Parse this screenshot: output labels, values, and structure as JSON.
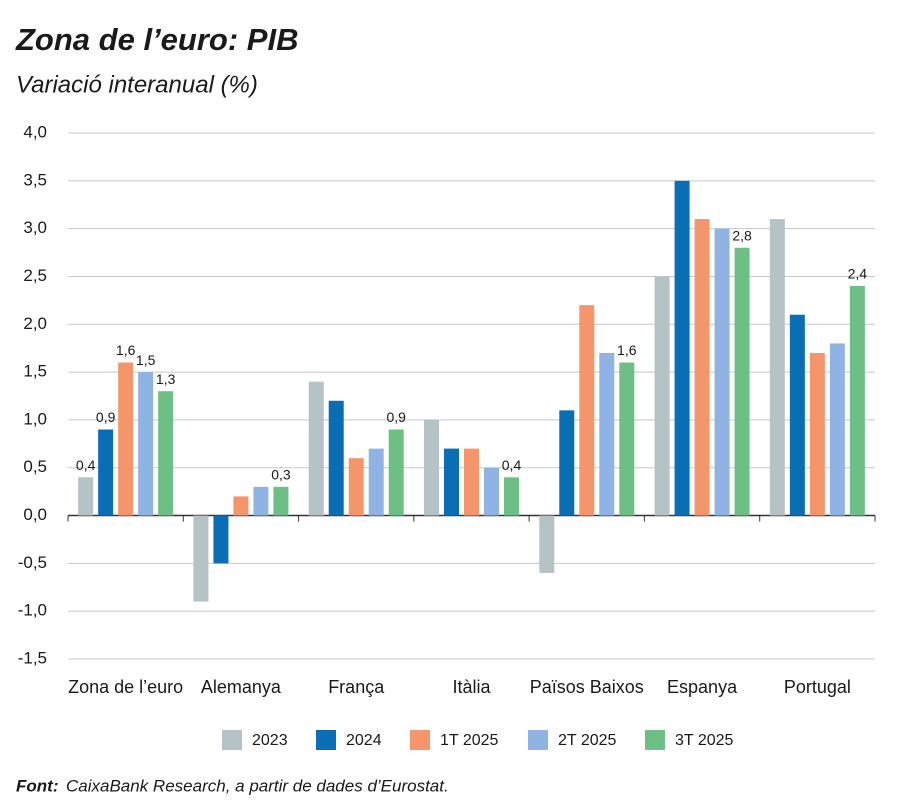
{
  "chart_data": {
    "type": "bar",
    "title": "Zona de l’euro: PIB",
    "subtitle": "Variació interanual (%)",
    "source_label": "Font:",
    "source": "CaixaBank Research, a partir de dades d’Eurostat.",
    "categories": [
      "Zona de l’euro",
      "Alemanya",
      "França",
      "Itàlia",
      "Països Baixos",
      "Espanya",
      "Portugal"
    ],
    "series": [
      {
        "name": "2023",
        "color": "#b5c3c6",
        "values": [
          0.4,
          -0.9,
          1.4,
          1.0,
          -0.6,
          2.5,
          3.1
        ],
        "value_labels": [
          "0,4",
          null,
          null,
          null,
          null,
          null,
          null
        ]
      },
      {
        "name": "2024",
        "color": "#0a6eb4",
        "values": [
          0.9,
          -0.5,
          1.2,
          0.7,
          1.1,
          3.5,
          2.1
        ],
        "value_labels": [
          "0,9",
          null,
          null,
          null,
          null,
          null,
          null
        ]
      },
      {
        "name": "1T 2025",
        "color": "#f4956b",
        "values": [
          1.6,
          0.2,
          0.6,
          0.7,
          2.2,
          3.1,
          1.7
        ],
        "value_labels": [
          "1,6",
          null,
          null,
          null,
          null,
          null,
          null
        ]
      },
      {
        "name": "2T 2025",
        "color": "#8fb4e3",
        "values": [
          1.5,
          0.3,
          0.7,
          0.5,
          1.7,
          3.0,
          1.8
        ],
        "value_labels": [
          "1,5",
          null,
          null,
          null,
          null,
          null,
          null
        ]
      },
      {
        "name": "3T 2025",
        "color": "#6dbf86",
        "values": [
          1.3,
          0.3,
          0.9,
          0.4,
          1.6,
          2.8,
          2.4
        ],
        "value_labels": [
          "1,3",
          "0,3",
          "0,9",
          "0,4",
          "1,6",
          "2,8",
          "2,4"
        ]
      }
    ],
    "ylim": [
      -1.5,
      4.0
    ],
    "yticks": [
      {
        "value": -1.5,
        "label": "-1,5"
      },
      {
        "value": -1.0,
        "label": "-1,0"
      },
      {
        "value": -0.5,
        "label": "-0,5"
      },
      {
        "value": 0,
        "label": "0,0"
      },
      {
        "value": 0.5,
        "label": "0,5"
      },
      {
        "value": 1.0,
        "label": "1,0"
      },
      {
        "value": 1.5,
        "label": "1,5"
      },
      {
        "value": 2.0,
        "label": "2,0"
      },
      {
        "value": 2.5,
        "label": "2,5"
      },
      {
        "value": 3.0,
        "label": "3,0"
      },
      {
        "value": 3.5,
        "label": "3,5"
      },
      {
        "value": 4.0,
        "label": "4,0"
      }
    ],
    "grid": true,
    "legend": "bottom"
  }
}
